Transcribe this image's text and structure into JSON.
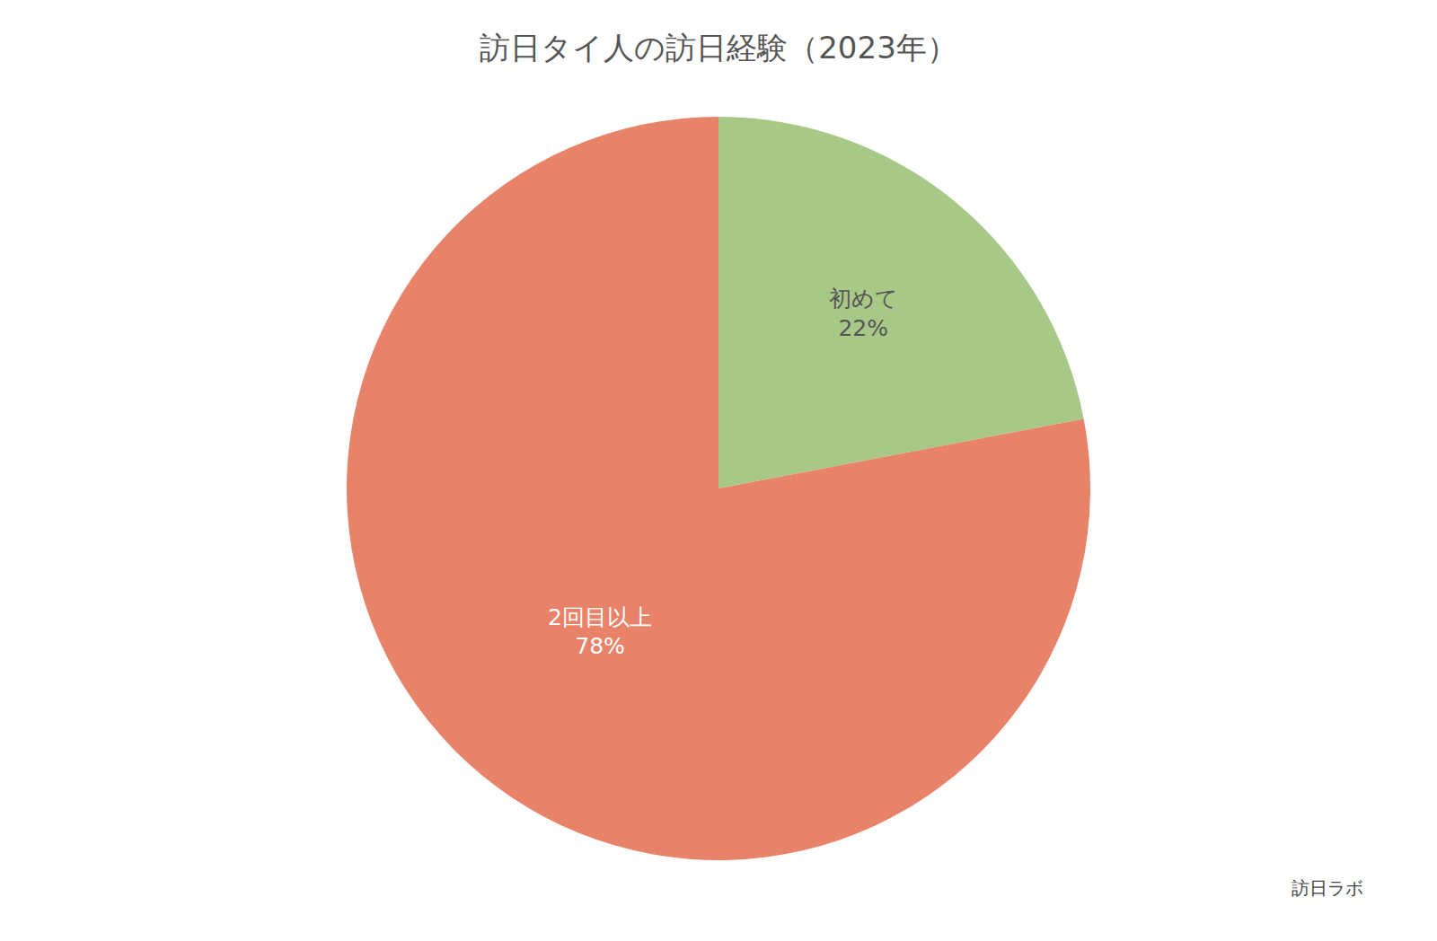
{
  "chart_data": {
    "type": "pie",
    "title": "訪日タイ人の訪日経験（2023年）",
    "categories": [
      "初めて",
      "2回目以上"
    ],
    "values": [
      22,
      78
    ],
    "value_labels": [
      "22%",
      "78%"
    ],
    "colors": [
      "#a8c888",
      "#e8836a"
    ],
    "annotations": [
      "訪日ラボ"
    ]
  }
}
